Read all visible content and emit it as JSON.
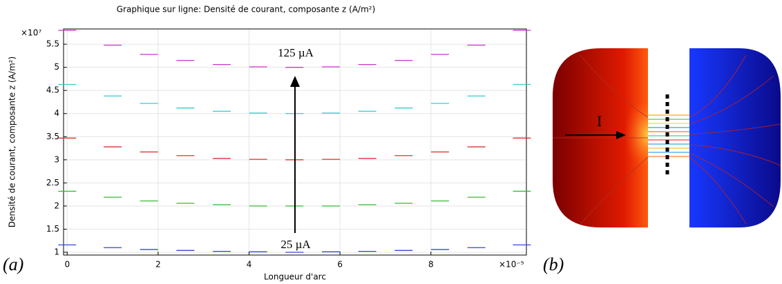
{
  "chart_data": {
    "type": "dash",
    "title": "Graphique sur ligne: Densité de courant, composante z (A/m²)",
    "x_label": "Longueur d'arc",
    "y_label": "Densité de courant, composante z (A/m²)",
    "y_multiplier": "×10⁷",
    "x_multiplier": "×10⁻⁵",
    "panel_label": "(a)",
    "annotations": [
      "125 µA",
      "25 µA"
    ],
    "x": [
      0,
      1,
      1.8,
      2.6,
      3.4,
      4.2,
      5,
      5.8,
      6.6,
      7.4,
      8.2,
      9,
      10
    ],
    "series": [
      {
        "color": "#cc33cc",
        "values": [
          5.8,
          5.48,
          5.28,
          5.15,
          5.06,
          5.01,
          5.0,
          5.01,
          5.06,
          5.15,
          5.28,
          5.48,
          5.8
        ]
      },
      {
        "color": "#33cccc",
        "values": [
          4.63,
          4.38,
          4.22,
          4.12,
          4.05,
          4.01,
          4.0,
          4.01,
          4.05,
          4.12,
          4.22,
          4.38,
          4.63
        ]
      },
      {
        "color": "#dd3333",
        "values": [
          3.47,
          3.28,
          3.17,
          3.09,
          3.03,
          3.01,
          3.0,
          3.01,
          3.03,
          3.09,
          3.17,
          3.28,
          3.47
        ]
      },
      {
        "color": "#33bb33",
        "values": [
          2.32,
          2.19,
          2.11,
          2.06,
          2.03,
          2.0,
          2.0,
          2.0,
          2.03,
          2.06,
          2.11,
          2.19,
          2.32
        ]
      },
      {
        "color": "#3344dd",
        "values": [
          1.16,
          1.1,
          1.06,
          1.04,
          1.02,
          1.01,
          1.0,
          1.01,
          1.02,
          1.04,
          1.06,
          1.1,
          1.16
        ]
      }
    ],
    "xlim": [
      -0.08,
      10.1
    ],
    "ylim": [
      0.94,
      5.83
    ],
    "xticks": [
      0,
      2,
      4,
      6,
      8
    ],
    "yticks": [
      1,
      1.5,
      2,
      2.5,
      3,
      3.5,
      4,
      4.5,
      5,
      5.5
    ],
    "grid": true
  },
  "figure_b": {
    "panel_label": "(b)",
    "current_label": "I"
  }
}
